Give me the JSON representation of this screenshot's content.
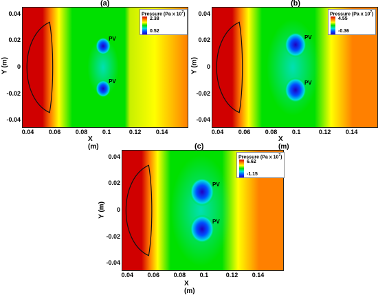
{
  "figure": {
    "x_label": "X (m)",
    "y_label": "Y (m)",
    "x_ticks": [
      "0.04",
      "0.06",
      "0.08",
      "0.1",
      "0.12",
      "0.14"
    ],
    "y_ticks": [
      "0.04",
      "0.02",
      "0",
      "-0.02",
      "-0.04"
    ],
    "legend_title": "Pressure (Pa x 10",
    "legend_title_sup": "7",
    "legend_title_end": ")",
    "pv_label": "PV",
    "colormap": [
      "#d00000",
      "#ff8000",
      "#ffff00",
      "#00e000",
      "#00e0e0",
      "#0050ff",
      "#2000c0"
    ]
  },
  "chart_data": [
    {
      "type": "heatmap",
      "panel": "(a)",
      "title": "",
      "xlabel": "X (m)",
      "ylabel": "Y (m)",
      "xlim": [
        0.035,
        0.158
      ],
      "ylim": [
        -0.045,
        0.045
      ],
      "legend_max": "2.38",
      "legend_min": "0.52",
      "pv_points": [
        {
          "x": 0.095,
          "y": 0.016
        },
        {
          "x": 0.095,
          "y": -0.016
        }
      ]
    },
    {
      "type": "heatmap",
      "panel": "(b)",
      "title": "",
      "xlabel": "X (m)",
      "ylabel": "Y (m)",
      "xlim": [
        0.035,
        0.158
      ],
      "ylim": [
        -0.045,
        0.045
      ],
      "legend_max": "4.55",
      "legend_min": "-0.36",
      "pv_points": [
        {
          "x": 0.097,
          "y": 0.017
        },
        {
          "x": 0.097,
          "y": -0.017
        }
      ]
    },
    {
      "type": "heatmap",
      "panel": "(c)",
      "title": "",
      "xlabel": "X (m)",
      "ylabel": "Y (m)",
      "xlim": [
        0.035,
        0.158
      ],
      "ylim": [
        -0.045,
        0.045
      ],
      "legend_max": "6.62",
      "legend_min": "-1.15",
      "pv_points": [
        {
          "x": 0.096,
          "y": 0.014
        },
        {
          "x": 0.096,
          "y": -0.014
        }
      ]
    }
  ]
}
